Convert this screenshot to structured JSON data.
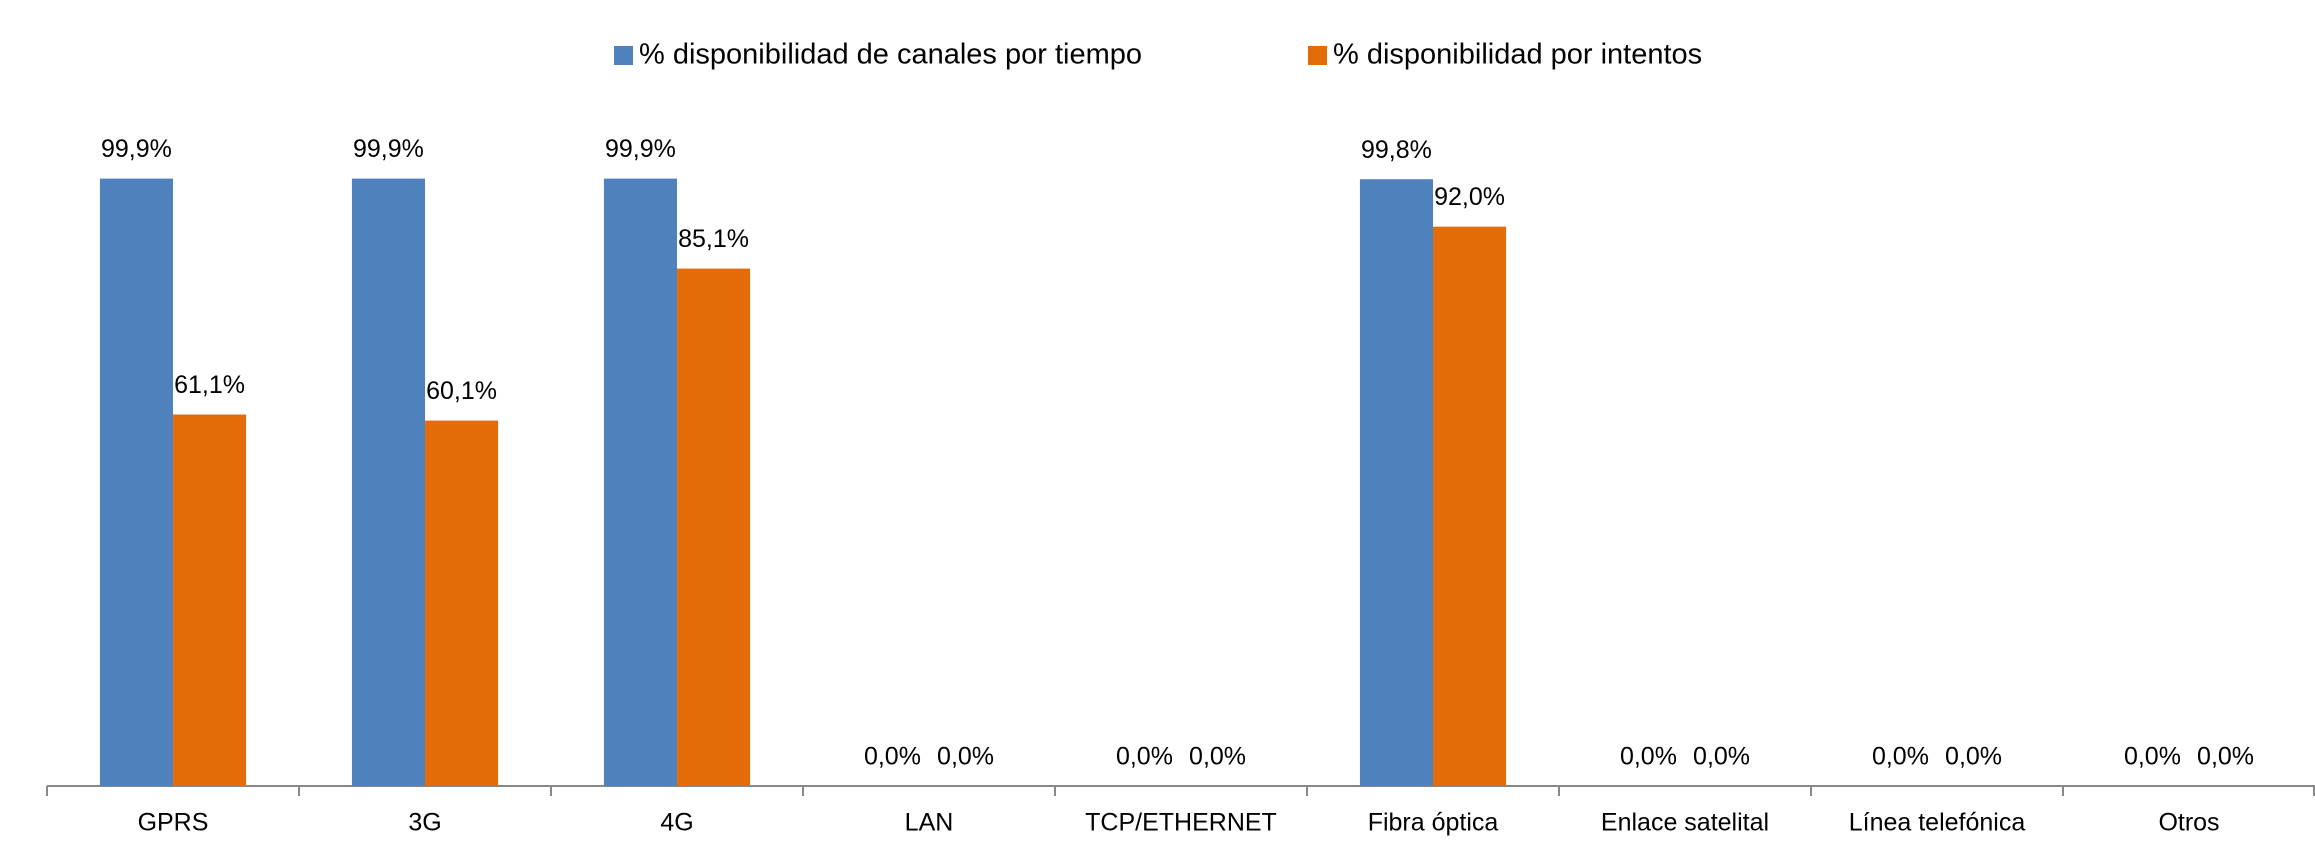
{
  "chart_data": {
    "type": "bar",
    "categories": [
      "GPRS",
      "3G",
      "4G",
      "LAN",
      "TCP/ETHERNET",
      "Fibra óptica",
      "Enlace satelital",
      "Línea telefónica",
      "Otros"
    ],
    "series": [
      {
        "name": "% disponibilidad de canales por tiempo",
        "color": "#4f81bd",
        "values": [
          99.9,
          99.9,
          99.9,
          0,
          0,
          99.8,
          0,
          0,
          0
        ],
        "value_labels": [
          "99,9%",
          "99,9%",
          "99,9%",
          "0,0%",
          "0,0%",
          "99,8%",
          "0,0%",
          "0,0%",
          "0,0%"
        ]
      },
      {
        "name": "% disponibilidad por intentos",
        "color": "#e36c09",
        "values": [
          61.1,
          60.1,
          85.1,
          0,
          0,
          92.0,
          0,
          0,
          0
        ],
        "value_labels": [
          "61,1%",
          "60,1%",
          "85,1%",
          "0,0%",
          "0,0%",
          "92,0%",
          "0,0%",
          "0,0%",
          "0,0%"
        ]
      }
    ],
    "ylim": [
      0,
      100
    ],
    "legend": "top"
  }
}
